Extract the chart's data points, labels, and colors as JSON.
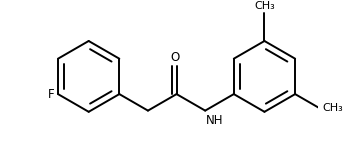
{
  "background_color": "#ffffff",
  "line_color": "#000000",
  "line_width": 1.4,
  "font_size": 8.5,
  "label_F": "F",
  "label_O": "O",
  "label_NH": "NH",
  "label_CH3": "CH₃",
  "figsize": [
    3.58,
    1.42
  ],
  "dpi": 100
}
